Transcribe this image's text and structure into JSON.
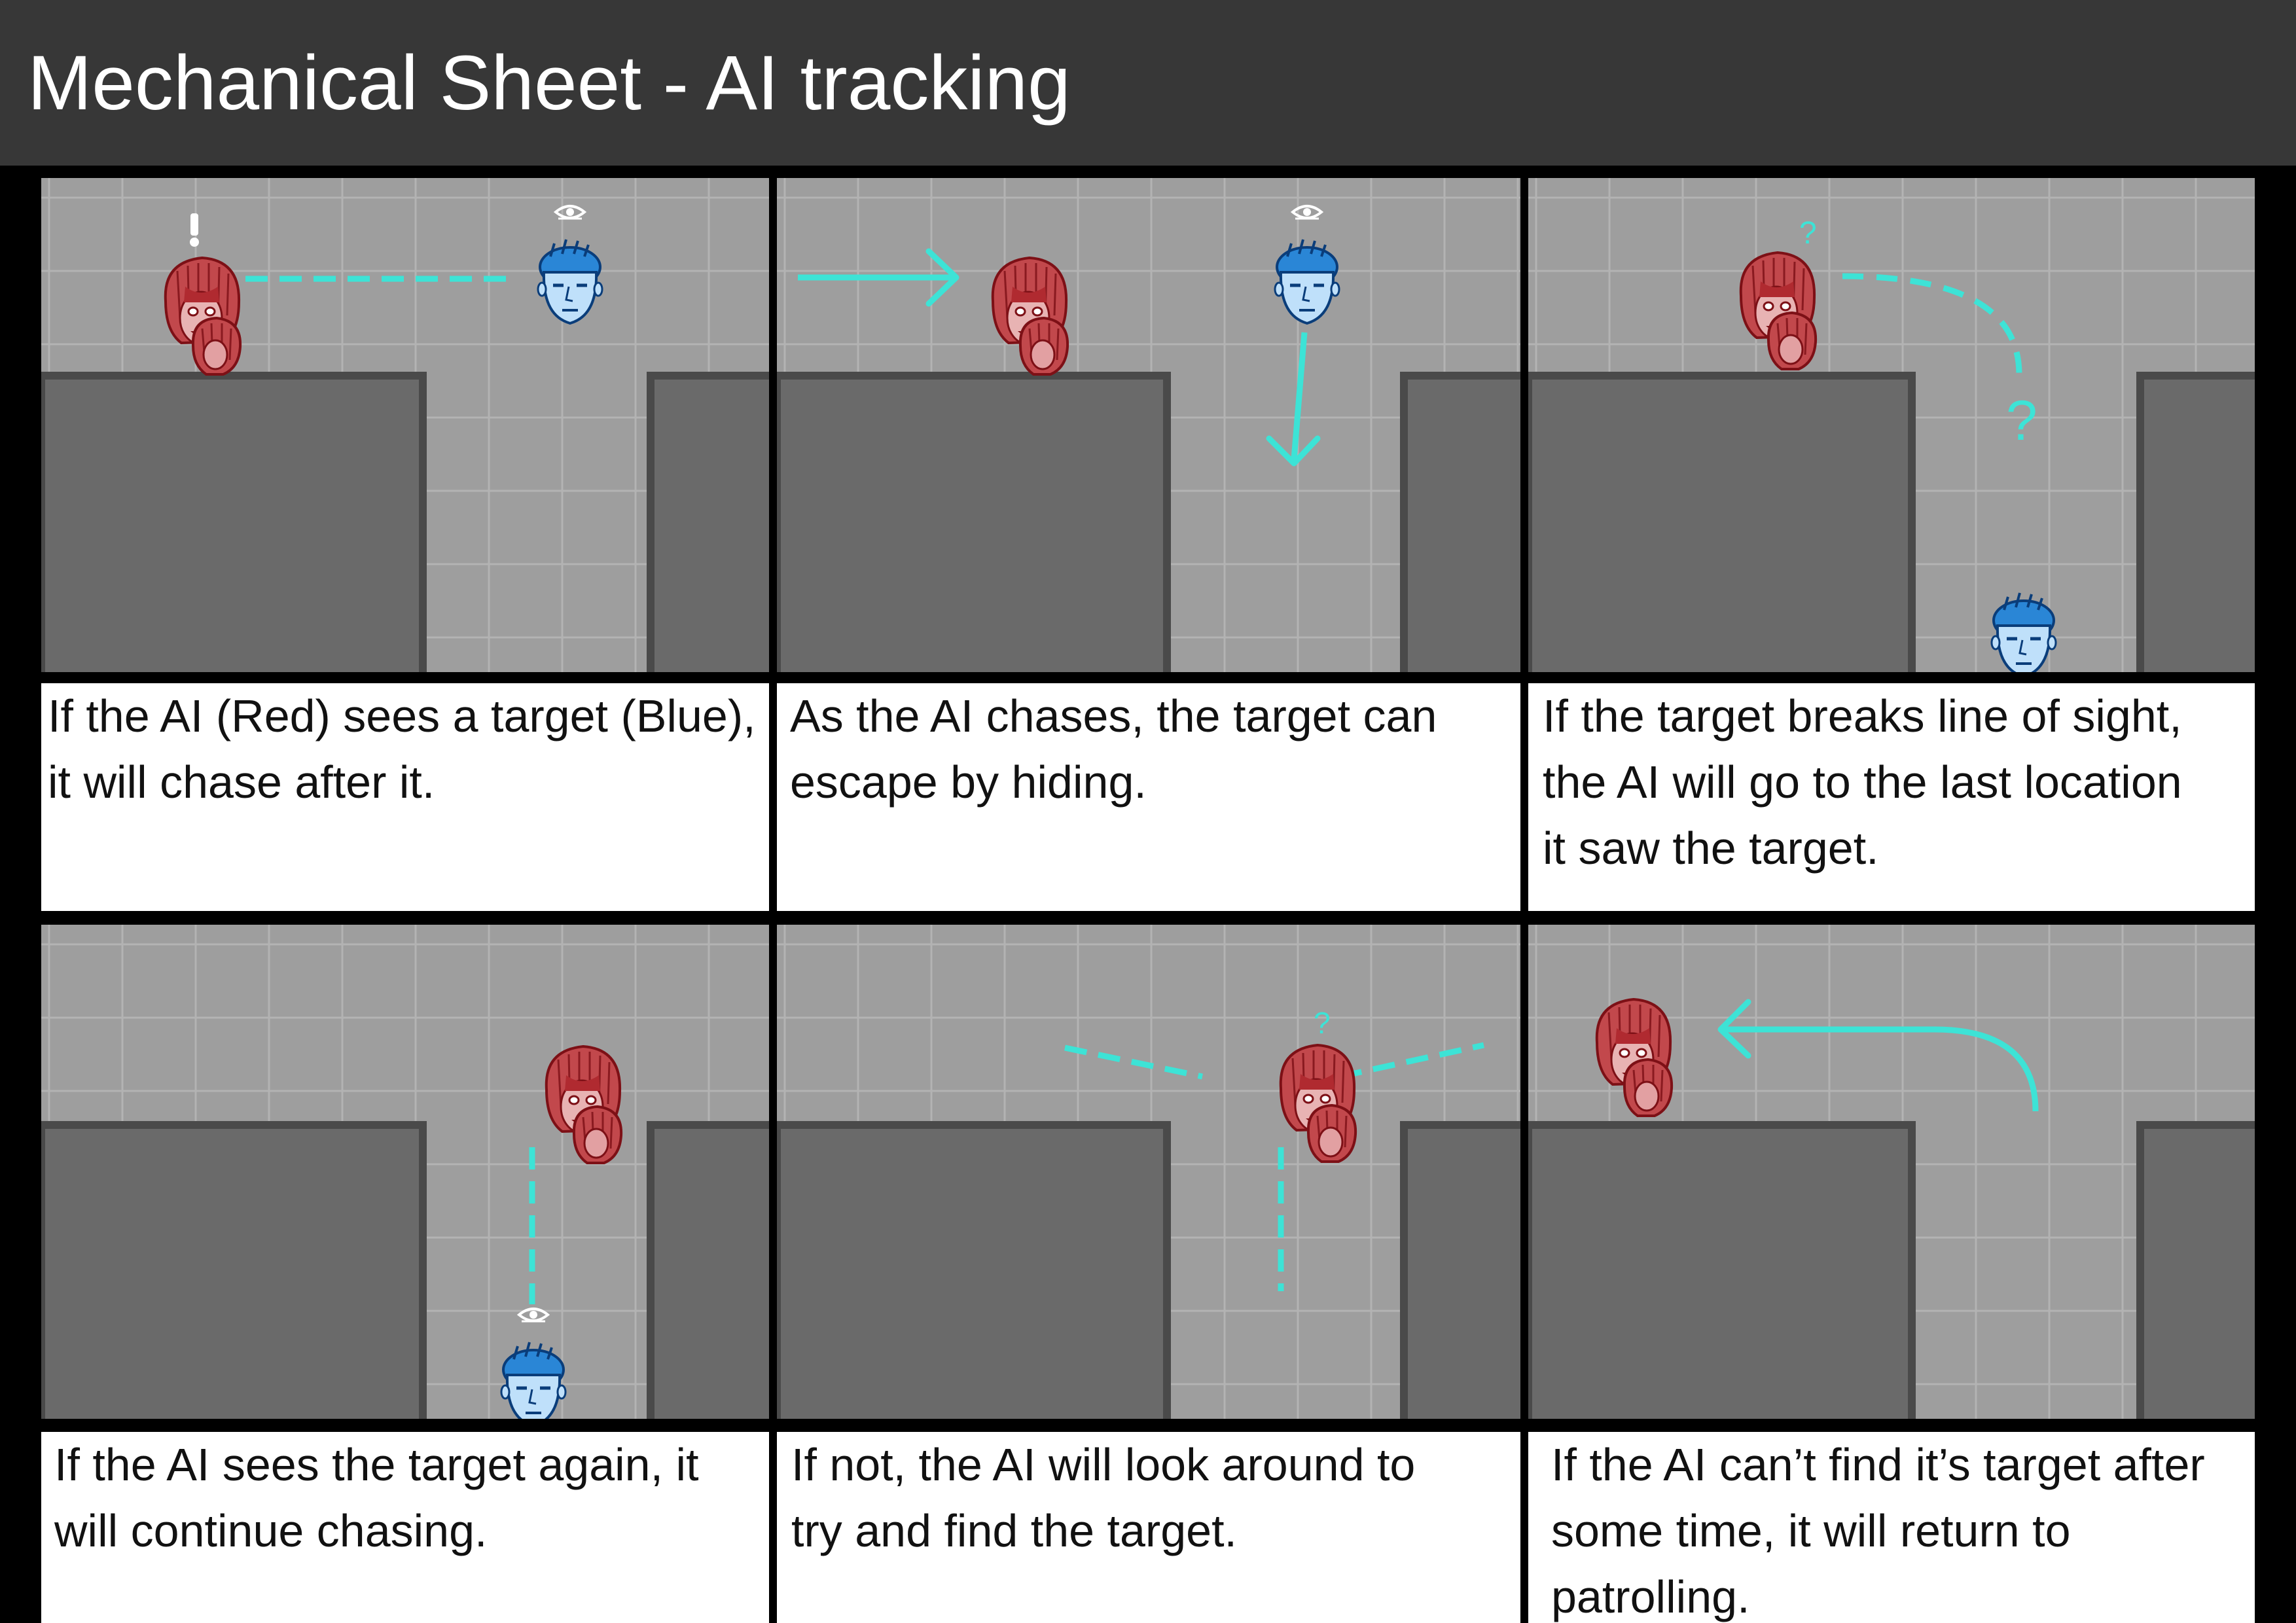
{
  "header": {
    "title": "Mechanical Sheet - AI tracking"
  },
  "legend": {
    "ai_color_name": "Red",
    "target_color_name": "Blue"
  },
  "colors": {
    "header_bg": "#373737",
    "floor": "#9e9e9e",
    "wall_block": "#6a6a6a",
    "path": "#3de3d6",
    "ai": "#a8232a",
    "target": "#1e74c8",
    "caption_bg": "#ffffff"
  },
  "icons": {
    "ai": "ai-red-girl-icon",
    "target": "target-blue-head-icon",
    "eye": "eye-icon",
    "alert": "exclamation-icon",
    "search": "question-mark-icon"
  },
  "panels": [
    {
      "caption": "If the AI (Red) sees a target (Blue),\nit will chase after it."
    },
    {
      "caption": "As the AI chases, the target can\nescape by hiding."
    },
    {
      "caption": "If the target breaks line of sight,\nthe AI will go to the last location\nit saw the target.",
      "marker": "?"
    },
    {
      "caption": "If the AI sees the target again, it\nwill continue chasing."
    },
    {
      "caption": "If not, the AI will look around to\ntry and find the target."
    },
    {
      "caption": "If the AI can’t find it’s target after\nsome time, it will return to\npatrolling."
    }
  ]
}
